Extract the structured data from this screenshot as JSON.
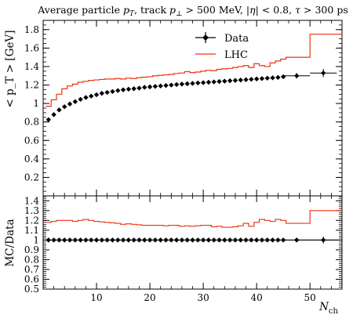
{
  "colors": {
    "data": "#000000",
    "mc": "#ee3311",
    "background": "#ffffff"
  },
  "chart_data": [
    {
      "type": "line",
      "title": "Average particle p_T, track p_⊥ > 500 MeV, |η| < 0.8, τ > 300 ps",
      "xlabel": "N_ch",
      "ylabel": "< p_T >  [GeV]",
      "xlim": [
        0,
        56
      ],
      "ylim": [
        0,
        1.9
      ],
      "x_ticks": [
        10,
        20,
        30,
        40,
        50
      ],
      "y_ticks": [
        0.2,
        0.4,
        0.6,
        0.8,
        1,
        1.2,
        1.4,
        1.6,
        1.8
      ],
      "y_tick_labels": [
        "0.2",
        "0.4",
        "0.6",
        "0.8",
        "1",
        "1.2",
        "1.4",
        "1.6",
        "1.8"
      ],
      "legend": {
        "position": "top-right",
        "entries": [
          "Data",
          "LHC"
        ]
      },
      "series": [
        {
          "name": "Data",
          "kind": "points-with-errors",
          "x": [
            1,
            2,
            3,
            4,
            5,
            6,
            7,
            8,
            9,
            10,
            11,
            12,
            13,
            14,
            15,
            16,
            17,
            18,
            19,
            20,
            21,
            22,
            23,
            24,
            25,
            26,
            27,
            28,
            29,
            30,
            31,
            32,
            33,
            34,
            35,
            36,
            37,
            38,
            39,
            40,
            41,
            42,
            43,
            44,
            45,
            47.5,
            52.5
          ],
          "y": [
            0.825,
            0.88,
            0.93,
            0.965,
            0.995,
            1.02,
            1.045,
            1.065,
            1.08,
            1.095,
            1.11,
            1.12,
            1.13,
            1.14,
            1.148,
            1.155,
            1.16,
            1.167,
            1.175,
            1.18,
            1.185,
            1.19,
            1.195,
            1.2,
            1.205,
            1.21,
            1.214,
            1.218,
            1.222,
            1.226,
            1.23,
            1.234,
            1.238,
            1.242,
            1.246,
            1.25,
            1.254,
            1.258,
            1.262,
            1.266,
            1.27,
            1.274,
            1.278,
            1.282,
            1.29,
            1.3,
            1.33
          ],
          "yerr": [
            0.005,
            0.005,
            0.005,
            0.005,
            0.005,
            0.005,
            0.005,
            0.005,
            0.005,
            0.005,
            0.005,
            0.005,
            0.005,
            0.005,
            0.005,
            0.005,
            0.005,
            0.005,
            0.005,
            0.005,
            0.005,
            0.005,
            0.005,
            0.005,
            0.005,
            0.005,
            0.005,
            0.005,
            0.005,
            0.005,
            0.005,
            0.005,
            0.005,
            0.005,
            0.005,
            0.005,
            0.005,
            0.005,
            0.005,
            0.005,
            0.005,
            0.005,
            0.005,
            0.005,
            0.005,
            0.03,
            0.045
          ],
          "xerr": [
            0,
            0,
            0,
            0,
            0,
            0,
            0,
            0,
            0,
            0,
            0,
            0,
            0,
            0,
            0,
            0,
            0,
            0,
            0,
            0,
            0,
            0,
            0,
            0,
            0,
            0,
            0,
            0,
            0,
            0,
            0,
            0,
            0,
            0,
            0,
            0,
            0,
            0,
            0,
            0,
            0,
            0,
            0,
            0,
            0,
            2.5,
            2.5
          ]
        },
        {
          "name": "LHC",
          "kind": "histogram",
          "bin_edges": [
            0.5,
            1.5,
            2.5,
            3.5,
            4.5,
            5.5,
            6.5,
            7.5,
            8.5,
            9.5,
            10.5,
            11.5,
            12.5,
            13.5,
            14.5,
            15.5,
            16.5,
            17.5,
            18.5,
            19.5,
            20.5,
            21.5,
            22.5,
            23.5,
            24.5,
            25.5,
            26.5,
            27.5,
            28.5,
            29.5,
            30.5,
            31.5,
            32.5,
            33.5,
            34.5,
            35.5,
            36.5,
            37.5,
            38.5,
            39.5,
            40.5,
            41.5,
            42.5,
            43.5,
            44.5,
            45.5,
            50,
            56
          ],
          "values": [
            0.97,
            1.04,
            1.1,
            1.16,
            1.19,
            1.21,
            1.23,
            1.24,
            1.25,
            1.255,
            1.26,
            1.265,
            1.265,
            1.27,
            1.265,
            1.275,
            1.27,
            1.28,
            1.285,
            1.29,
            1.3,
            1.305,
            1.31,
            1.315,
            1.325,
            1.33,
            1.345,
            1.335,
            1.34,
            1.35,
            1.36,
            1.355,
            1.37,
            1.375,
            1.38,
            1.39,
            1.4,
            1.41,
            1.39,
            1.43,
            1.41,
            1.4,
            1.44,
            1.46,
            1.48,
            1.5,
            1.75
          ]
        }
      ]
    },
    {
      "type": "line",
      "title": "",
      "xlabel": "N_ch",
      "ylabel": "MC/Data",
      "xlim": [
        0,
        56
      ],
      "ylim": [
        0.5,
        1.45
      ],
      "x_ticks": [
        10,
        20,
        30,
        40,
        50
      ],
      "y_ticks": [
        0.5,
        0.6,
        0.7,
        0.8,
        0.9,
        1,
        1.1,
        1.2,
        1.3,
        1.4
      ],
      "y_tick_labels": [
        "0.5",
        "0.6",
        "0.7",
        "0.8",
        "0.9",
        "1",
        "1.1",
        "1.2",
        "1.3",
        "1.4"
      ],
      "series": [
        {
          "name": "Data",
          "kind": "points-with-errors",
          "x": [
            1,
            2,
            3,
            4,
            5,
            6,
            7,
            8,
            9,
            10,
            11,
            12,
            13,
            14,
            15,
            16,
            17,
            18,
            19,
            20,
            21,
            22,
            23,
            24,
            25,
            26,
            27,
            28,
            29,
            30,
            31,
            32,
            33,
            34,
            35,
            36,
            37,
            38,
            39,
            40,
            41,
            42,
            43,
            44,
            45,
            47.5,
            52.5
          ],
          "y": [
            1,
            1,
            1,
            1,
            1,
            1,
            1,
            1,
            1,
            1,
            1,
            1,
            1,
            1,
            1,
            1,
            1,
            1,
            1,
            1,
            1,
            1,
            1,
            1,
            1,
            1,
            1,
            1,
            1,
            1,
            1,
            1,
            1,
            1,
            1,
            1,
            1,
            1,
            1,
            1,
            1,
            1,
            1,
            1,
            1,
            1,
            1
          ],
          "yerr": [
            0,
            0,
            0,
            0,
            0,
            0,
            0,
            0,
            0,
            0,
            0,
            0,
            0,
            0,
            0,
            0,
            0,
            0,
            0,
            0,
            0,
            0,
            0,
            0,
            0,
            0,
            0,
            0,
            0,
            0,
            0,
            0,
            0,
            0,
            0,
            0,
            0,
            0,
            0,
            0,
            0,
            0,
            0,
            0,
            0,
            0.015,
            0.035
          ],
          "xerr": [
            0,
            0,
            0,
            0,
            0,
            0,
            0,
            0,
            0,
            0,
            0,
            0,
            0,
            0,
            0,
            0,
            0,
            0,
            0,
            0,
            0,
            0,
            0,
            0,
            0,
            0,
            0,
            0,
            0,
            0,
            0,
            0,
            0,
            0,
            0,
            0,
            0,
            0,
            0,
            0,
            0,
            0,
            0,
            0,
            0,
            2.5,
            2.5
          ]
        },
        {
          "name": "LHC",
          "kind": "histogram",
          "bin_edges": [
            0.5,
            1.5,
            2.5,
            3.5,
            4.5,
            5.5,
            6.5,
            7.5,
            8.5,
            9.5,
            10.5,
            11.5,
            12.5,
            13.5,
            14.5,
            15.5,
            16.5,
            17.5,
            18.5,
            19.5,
            20.5,
            21.5,
            22.5,
            23.5,
            24.5,
            25.5,
            26.5,
            27.5,
            28.5,
            29.5,
            30.5,
            31.5,
            32.5,
            33.5,
            34.5,
            35.5,
            36.5,
            37.5,
            38.5,
            39.5,
            40.5,
            41.5,
            42.5,
            43.5,
            44.5,
            45.5,
            50,
            56
          ],
          "values": [
            1.18,
            1.19,
            1.2,
            1.2,
            1.2,
            1.19,
            1.2,
            1.21,
            1.2,
            1.19,
            1.185,
            1.18,
            1.175,
            1.17,
            1.16,
            1.165,
            1.16,
            1.155,
            1.15,
            1.15,
            1.15,
            1.15,
            1.145,
            1.15,
            1.15,
            1.14,
            1.145,
            1.14,
            1.145,
            1.15,
            1.15,
            1.135,
            1.14,
            1.13,
            1.13,
            1.135,
            1.145,
            1.17,
            1.14,
            1.18,
            1.21,
            1.2,
            1.19,
            1.21,
            1.2,
            1.17,
            1.3
          ]
        }
      ]
    }
  ]
}
